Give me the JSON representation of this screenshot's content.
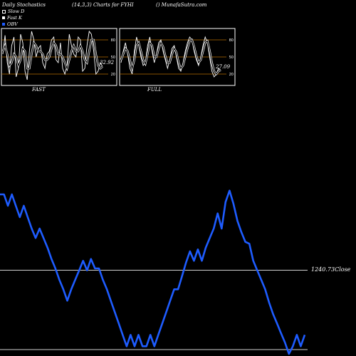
{
  "header": {
    "title": "Daily Stochastics",
    "params": "(14,3,3) Charts for FYHI",
    "site": "() MunafaSutra.com"
  },
  "legend": [
    {
      "label": "Slow D",
      "color": "#000000"
    },
    {
      "label": "Fast K",
      "color": "#ffffff"
    },
    {
      "label": "OBV",
      "color": "#1e5cff"
    }
  ],
  "colors": {
    "obv": "#1e5cff",
    "panel": "#000000",
    "grid": "#b36b00"
  },
  "chart_data": [
    {
      "type": "line",
      "title": "FAST",
      "levels": [
        80,
        50,
        20
      ],
      "ylim": [
        0,
        100
      ],
      "last_value": "32.92",
      "series": [
        {
          "name": "Fast K",
          "values": [
            55,
            88,
            40,
            20,
            70,
            85,
            15,
            30,
            90,
            75,
            25,
            10,
            60,
            95,
            80,
            50,
            65,
            70,
            40,
            30,
            55,
            60,
            80,
            85,
            45,
            40,
            75,
            30,
            20,
            35,
            90,
            70,
            55,
            50,
            85,
            80,
            25,
            30,
            70,
            95,
            90,
            60,
            20,
            25,
            40,
            33
          ]
        },
        {
          "name": "Slow D",
          "values": [
            60,
            70,
            55,
            35,
            40,
            55,
            50,
            35,
            45,
            65,
            60,
            30,
            30,
            55,
            75,
            70,
            60,
            60,
            55,
            45,
            45,
            50,
            65,
            75,
            70,
            55,
            55,
            50,
            40,
            30,
            45,
            60,
            70,
            60,
            60,
            70,
            60,
            45,
            40,
            60,
            80,
            80,
            55,
            35,
            30,
            33
          ]
        }
      ]
    },
    {
      "type": "line",
      "title": "FULL",
      "levels": [
        80,
        50,
        20
      ],
      "ylim": [
        0,
        100
      ],
      "last_value": "27.09",
      "series": [
        {
          "name": "Fast K",
          "values": [
            40,
            60,
            75,
            55,
            30,
            20,
            60,
            85,
            70,
            50,
            35,
            40,
            70,
            85,
            60,
            40,
            55,
            75,
            80,
            60,
            45,
            30,
            45,
            65,
            70,
            50,
            30,
            25,
            40,
            60,
            75,
            85,
            80,
            60,
            45,
            35,
            50,
            70,
            85,
            75,
            50,
            25,
            15,
            20,
            30,
            27
          ]
        },
        {
          "name": "Slow D",
          "values": [
            45,
            55,
            65,
            60,
            45,
            30,
            45,
            70,
            75,
            60,
            45,
            38,
            55,
            75,
            70,
            50,
            50,
            65,
            75,
            68,
            52,
            40,
            40,
            55,
            65,
            58,
            40,
            30,
            35,
            50,
            65,
            78,
            80,
            68,
            52,
            40,
            45,
            60,
            75,
            78,
            62,
            40,
            25,
            20,
            25,
            27
          ]
        }
      ]
    },
    {
      "type": "line",
      "title": "",
      "close_label": "1240.73Close",
      "series": [
        {
          "name": "OBV",
          "values": [
            1420,
            1420,
            1390,
            1420,
            1390,
            1360,
            1390,
            1360,
            1330,
            1305,
            1330,
            1305,
            1280,
            1250,
            1225,
            1195,
            1170,
            1140,
            1170,
            1195,
            1220,
            1245,
            1220,
            1250,
            1225,
            1225,
            1195,
            1170,
            1140,
            1110,
            1080,
            1050,
            1020,
            1050,
            1020,
            1050,
            1020,
            1020,
            1050,
            1020,
            1050,
            1080,
            1110,
            1140,
            1170,
            1170,
            1205,
            1240,
            1270,
            1245,
            1275,
            1245,
            1280,
            1305,
            1330,
            1370,
            1330,
            1400,
            1430,
            1395,
            1350,
            1320,
            1295,
            1290,
            1245,
            1220,
            1195,
            1170,
            1135,
            1105,
            1080,
            1055,
            1030,
            1000,
            1020,
            1050,
            1020,
            1050
          ]
        }
      ]
    }
  ]
}
